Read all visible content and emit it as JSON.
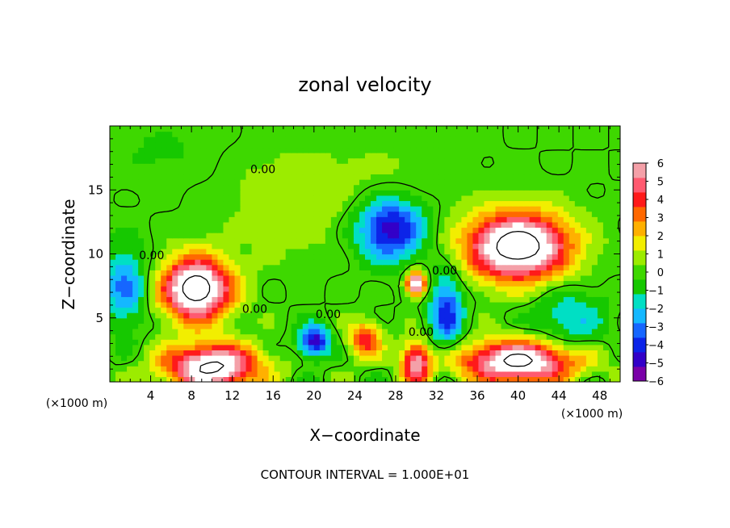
{
  "chart_data": {
    "type": "heatmap",
    "title": "zonal velocity",
    "xlabel": "X−coordinate",
    "ylabel": "Z−coordinate",
    "x_unit_left": "(×1000 m)",
    "x_unit_right": "(×1000 m)",
    "xlim": [
      0,
      50
    ],
    "ylim": [
      0,
      20
    ],
    "xticks": [
      4,
      8,
      12,
      16,
      20,
      24,
      28,
      32,
      36,
      40,
      44,
      48
    ],
    "yticks": [
      5,
      10,
      15
    ],
    "colorbar": {
      "min": -6,
      "max": 6,
      "ticks": [
        6,
        5,
        4,
        3,
        2,
        1,
        0,
        -1,
        -2,
        -3,
        -4,
        -5,
        -6
      ],
      "tick_labels": [
        "6",
        "5",
        "4",
        "3",
        "2",
        "1",
        "0",
        "−1",
        "−2",
        "−3",
        "−4",
        "−5",
        "−6"
      ],
      "colors": [
        "#7a00a8",
        "#3300c8",
        "#0c24e8",
        "#1666ff",
        "#14b8ff",
        "#00dfc4",
        "#16c800",
        "#3ed800",
        "#9cec00",
        "#f2ee00",
        "#ffb000",
        "#ff6800",
        "#ff1a1a",
        "#ff5a70",
        "#f4a0a8"
      ]
    },
    "contour_interval": "CONTOUR INTERVAL = 1.000E+01",
    "contour_labels": [
      {
        "text": "0.00",
        "x": 15,
        "z": 16.3
      },
      {
        "text": "0.00",
        "x": 4.1,
        "z": 9.6
      },
      {
        "text": "0.00",
        "x": 14.2,
        "z": 5.4
      },
      {
        "text": "0.00",
        "x": 21.4,
        "z": 5.0
      },
      {
        "text": "0.00",
        "x": 30.5,
        "z": 3.6
      },
      {
        "text": "0.00",
        "x": 32.8,
        "z": 8.4
      }
    ],
    "features": [
      {
        "x": 8.5,
        "z": 7.3,
        "rx": 3.3,
        "rz": 2.4,
        "v": 9
      },
      {
        "x": 40,
        "z": 10.6,
        "rx": 4.9,
        "rz": 2.6,
        "v": 9
      },
      {
        "x": 30,
        "z": 7.7,
        "rx": 0.9,
        "rz": 0.9,
        "v": 8
      },
      {
        "x": 10,
        "z": 1.2,
        "rx": 4.5,
        "rz": 1.7,
        "v": 8
      },
      {
        "x": 40,
        "z": 1.6,
        "rx": 5.5,
        "rz": 1.6,
        "v": 8
      },
      {
        "x": 30,
        "z": 1.5,
        "rx": 1.4,
        "rz": 1.6,
        "v": 6
      },
      {
        "x": 25,
        "z": 3.3,
        "rx": 1.6,
        "rz": 1.4,
        "v": 4
      },
      {
        "x": 20,
        "z": 3.2,
        "rx": 1.5,
        "rz": 1.2,
        "v": -5
      },
      {
        "x": 27.5,
        "z": 12,
        "rx": 3.2,
        "rz": 2.4,
        "v": -5
      },
      {
        "x": 33,
        "z": 5.5,
        "rx": 1.6,
        "rz": 3.0,
        "v": -4
      },
      {
        "x": 1.5,
        "z": 7.5,
        "rx": 2.2,
        "rz": 3.0,
        "v": -3
      },
      {
        "x": 45,
        "z": 5.0,
        "rx": 3.5,
        "rz": 2.5,
        "v": -2
      },
      {
        "x": 18,
        "z": 14,
        "rx": 6.0,
        "rz": 4.0,
        "v": 1
      },
      {
        "x": 5,
        "z": 18,
        "rx": 5.0,
        "rz": 2.5,
        "v": -0.5
      },
      {
        "x": 28,
        "z": 16,
        "rx": 6.0,
        "rz": 3.0,
        "v": 0.5
      }
    ]
  },
  "icons": {
    "colorbar": "colorbar-legend-icon"
  }
}
